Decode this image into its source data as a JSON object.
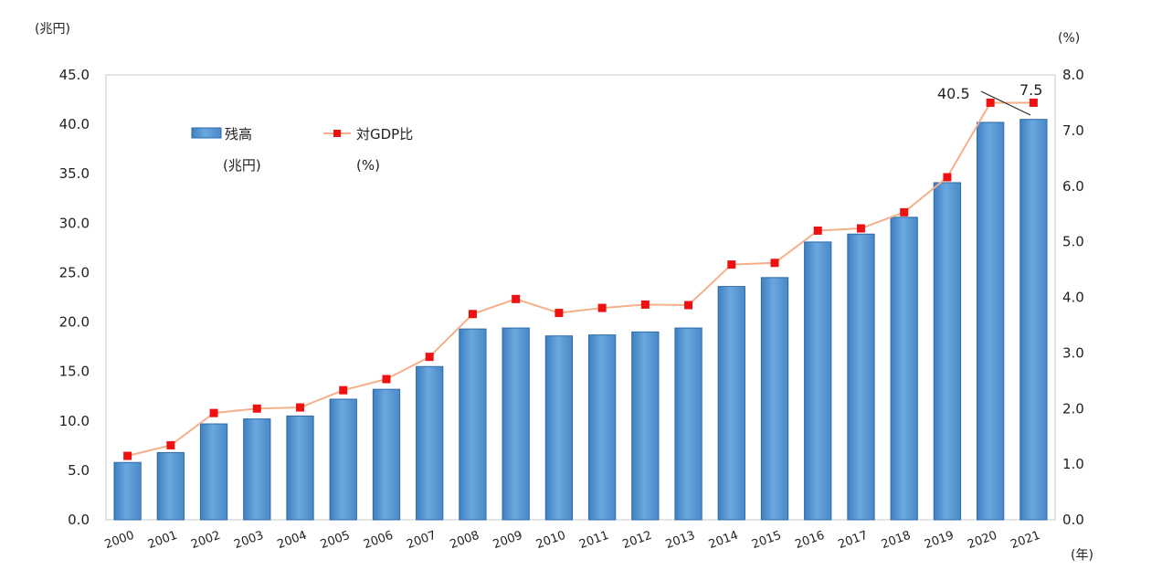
{
  "chart_data": {
    "type": "bar+line",
    "categories": [
      "2000",
      "2001",
      "2002",
      "2003",
      "2004",
      "2005",
      "2006",
      "2007",
      "2008",
      "2009",
      "2010",
      "2011",
      "2012",
      "2013",
      "2014",
      "2015",
      "2016",
      "2017",
      "2018",
      "2019",
      "2020",
      "2021"
    ],
    "series": [
      {
        "name": "残高",
        "name_unit": "(兆円)",
        "type": "bar",
        "axis": "left",
        "color": "#5b9bd5",
        "values": [
          5.8,
          6.8,
          9.7,
          10.2,
          10.5,
          12.2,
          13.2,
          15.5,
          19.3,
          19.4,
          18.6,
          18.7,
          19.0,
          19.4,
          23.6,
          24.5,
          28.1,
          28.9,
          30.6,
          34.1,
          40.2,
          40.5
        ]
      },
      {
        "name": "対GDP比",
        "name_unit": "(%)",
        "type": "line",
        "axis": "right",
        "color": "#ee1111",
        "line_color": "#f5b08a",
        "values": [
          1.15,
          1.34,
          1.92,
          2.0,
          2.02,
          2.33,
          2.53,
          2.93,
          3.7,
          3.97,
          3.72,
          3.81,
          3.87,
          3.86,
          4.59,
          4.62,
          5.2,
          5.24,
          5.53,
          6.16,
          7.5,
          7.5
        ]
      }
    ],
    "y_left": {
      "unit": "(兆円)",
      "ylim": [
        0,
        45
      ],
      "ticks": [
        "0.0",
        "5.0",
        "10.0",
        "15.0",
        "20.0",
        "25.0",
        "30.0",
        "35.0",
        "40.0",
        "45.0"
      ]
    },
    "y_right": {
      "unit": "(%)",
      "ylim": [
        0,
        8
      ],
      "ticks": [
        "0.0",
        "1.0",
        "2.0",
        "3.0",
        "4.0",
        "5.0",
        "6.0",
        "7.0",
        "8.0"
      ]
    },
    "x_unit": "(年)",
    "annotations": [
      {
        "text": "40.5",
        "series": 0,
        "index": 21
      },
      {
        "text": "7.5",
        "series": 1,
        "index": 21
      }
    ],
    "legend_position": "top-left",
    "grid": false
  }
}
